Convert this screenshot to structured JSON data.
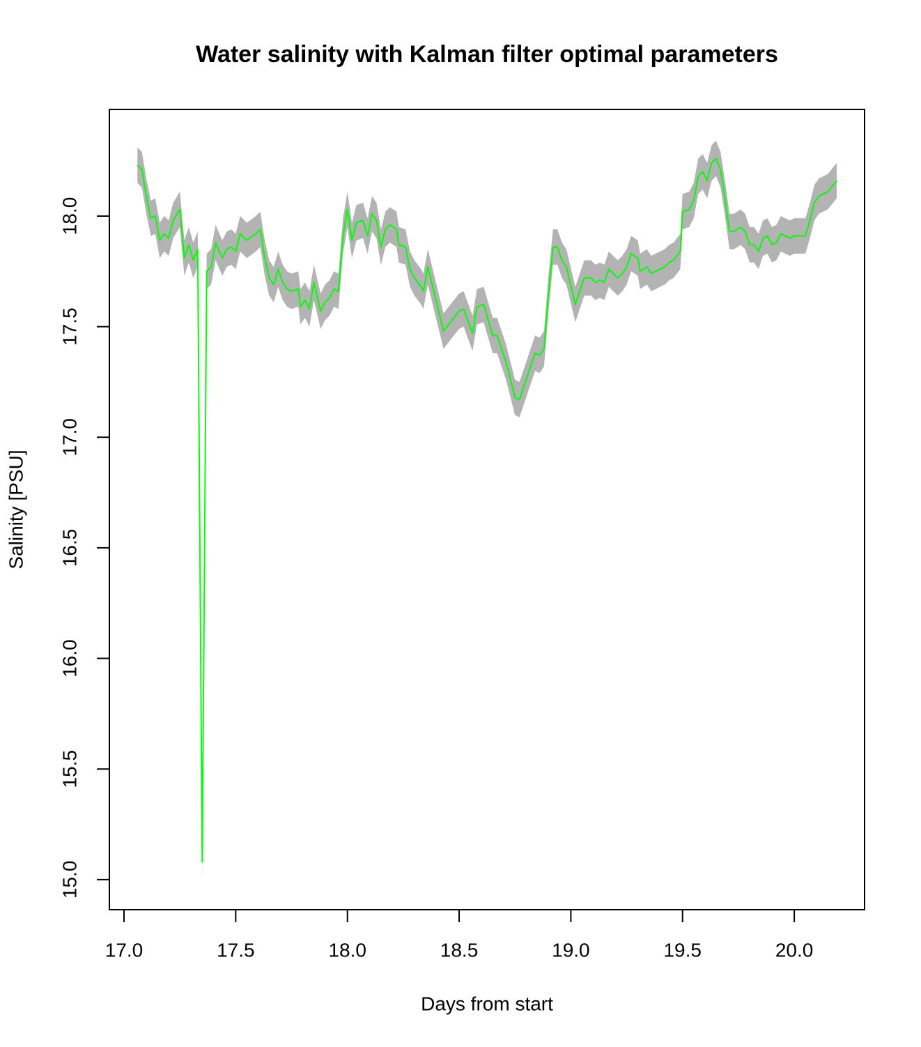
{
  "chart_data": {
    "type": "line",
    "title": "Water salinity with Kalman filter optimal parameters",
    "x_label": "Days from start",
    "y_label": "Salinity [PSU]",
    "xlim": [
      16.9345,
      20.3147
    ],
    "ylim": [
      14.864,
      18.482
    ],
    "xticks": [
      {
        "value": 17,
        "label": "17.0"
      },
      {
        "value": 17.5,
        "label": "17.5"
      },
      {
        "value": 18,
        "label": "18.0"
      },
      {
        "value": 18.5,
        "label": "18.5"
      },
      {
        "value": 19,
        "label": "19.0"
      },
      {
        "value": 19.5,
        "label": "19.5"
      },
      {
        "value": 20,
        "label": "20.0"
      }
    ],
    "yticks": [
      {
        "value": 15,
        "label": "15.0"
      },
      {
        "value": 15.5,
        "label": "15.5"
      },
      {
        "value": 16,
        "label": "16.0"
      },
      {
        "value": 16.5,
        "label": "16.5"
      },
      {
        "value": 17,
        "label": "17.0"
      },
      {
        "value": 17.5,
        "label": "17.5"
      },
      {
        "value": 18,
        "label": "18.0"
      }
    ],
    "x": [
      17.06,
      17.08,
      17.1,
      17.12,
      17.14,
      17.16,
      17.18,
      17.2,
      17.22,
      17.25,
      17.27,
      17.29,
      17.31,
      17.33,
      17.35,
      17.37,
      17.39,
      17.41,
      17.44,
      17.46,
      17.48,
      17.5,
      17.52,
      17.55,
      17.59,
      17.61,
      17.63,
      17.65,
      17.67,
      17.69,
      17.71,
      17.73,
      17.75,
      17.78,
      17.79,
      17.81,
      17.83,
      17.85,
      17.88,
      17.9,
      17.92,
      17.94,
      17.96,
      17.98,
      18.0,
      18.02,
      18.04,
      18.07,
      18.09,
      18.11,
      18.13,
      18.15,
      18.17,
      18.19,
      18.22,
      18.23,
      18.26,
      18.28,
      18.3,
      18.33,
      18.34,
      18.36,
      18.43,
      18.5,
      18.52,
      18.56,
      18.58,
      18.61,
      18.65,
      18.67,
      18.69,
      18.71,
      18.75,
      18.77,
      18.81,
      18.84,
      18.86,
      18.88,
      18.9,
      18.92,
      18.94,
      18.96,
      18.98,
      19.02,
      19.06,
      19.09,
      19.11,
      19.13,
      19.15,
      19.17,
      19.21,
      19.23,
      19.25,
      19.27,
      19.3,
      19.31,
      19.34,
      19.36,
      19.42,
      19.44,
      19.46,
      19.49,
      19.5,
      19.53,
      19.55,
      19.57,
      19.59,
      19.61,
      19.63,
      19.65,
      19.67,
      19.69,
      19.71,
      19.73,
      19.76,
      19.78,
      19.8,
      19.82,
      19.84,
      19.86,
      19.88,
      19.9,
      19.92,
      19.94,
      19.98,
      20.0,
      20.05,
      20.07,
      20.09,
      20.11,
      20.15,
      20.19
    ],
    "band": {
      "color": "#b3b3b3",
      "upper": [
        18.31,
        18.29,
        18.17,
        18.07,
        18.08,
        17.97,
        18.0,
        17.98,
        18.06,
        18.11,
        17.89,
        17.95,
        17.88,
        17.93,
        15.12,
        17.83,
        17.85,
        17.96,
        17.89,
        17.93,
        17.94,
        17.92,
        18.0,
        17.97,
        18.0,
        18.02,
        17.89,
        17.8,
        17.77,
        17.84,
        17.78,
        17.75,
        17.74,
        17.75,
        17.67,
        17.7,
        17.66,
        17.78,
        17.65,
        17.69,
        17.71,
        17.75,
        17.74,
        17.99,
        18.11,
        17.97,
        18.05,
        18.06,
        17.99,
        18.09,
        18.06,
        17.94,
        18.02,
        18.04,
        18.02,
        17.95,
        17.94,
        17.84,
        17.8,
        17.76,
        17.74,
        17.85,
        17.56,
        17.65,
        17.66,
        17.55,
        17.67,
        17.68,
        17.54,
        17.54,
        17.48,
        17.42,
        17.26,
        17.25,
        17.37,
        17.46,
        17.45,
        17.48,
        17.73,
        17.94,
        17.94,
        17.88,
        17.85,
        17.68,
        17.8,
        17.8,
        17.78,
        17.79,
        17.78,
        17.84,
        17.8,
        17.82,
        17.85,
        17.91,
        17.89,
        17.83,
        17.85,
        17.82,
        17.85,
        17.87,
        17.88,
        17.92,
        18.1,
        18.11,
        18.15,
        18.26,
        18.28,
        18.24,
        18.32,
        18.34,
        18.29,
        18.16,
        18.01,
        18.01,
        18.03,
        18.01,
        17.95,
        17.95,
        17.92,
        17.98,
        17.99,
        17.95,
        17.96,
        18.0,
        17.98,
        17.99,
        17.99,
        18.06,
        18.14,
        18.17,
        18.19,
        18.24
      ],
      "lower": [
        18.15,
        18.13,
        18.01,
        17.91,
        17.92,
        17.81,
        17.84,
        17.82,
        17.9,
        17.95,
        17.73,
        17.79,
        17.72,
        17.77,
        15.02,
        17.67,
        17.69,
        17.8,
        17.73,
        17.77,
        17.78,
        17.76,
        17.84,
        17.81,
        17.84,
        17.86,
        17.73,
        17.64,
        17.61,
        17.68,
        17.62,
        17.59,
        17.58,
        17.59,
        17.51,
        17.54,
        17.5,
        17.62,
        17.49,
        17.53,
        17.55,
        17.59,
        17.58,
        17.83,
        17.95,
        17.81,
        17.89,
        17.9,
        17.83,
        17.93,
        17.9,
        17.78,
        17.86,
        17.88,
        17.86,
        17.79,
        17.78,
        17.68,
        17.64,
        17.6,
        17.58,
        17.69,
        17.4,
        17.49,
        17.5,
        17.39,
        17.51,
        17.52,
        17.38,
        17.38,
        17.32,
        17.26,
        17.1,
        17.09,
        17.21,
        17.3,
        17.29,
        17.32,
        17.57,
        17.78,
        17.78,
        17.72,
        17.69,
        17.52,
        17.64,
        17.64,
        17.62,
        17.63,
        17.62,
        17.68,
        17.64,
        17.66,
        17.69,
        17.75,
        17.73,
        17.67,
        17.69,
        17.66,
        17.69,
        17.71,
        17.72,
        17.76,
        17.94,
        17.95,
        17.99,
        18.1,
        18.12,
        18.08,
        18.16,
        18.18,
        18.13,
        18.0,
        17.85,
        17.85,
        17.87,
        17.85,
        17.79,
        17.79,
        17.76,
        17.82,
        17.83,
        17.79,
        17.8,
        17.84,
        17.82,
        17.83,
        17.83,
        17.9,
        17.98,
        18.01,
        18.03,
        18.08
      ]
    },
    "values_color": "#00ff00",
    "values": [
      18.23,
      18.21,
      18.09,
      17.99,
      18.0,
      17.89,
      17.92,
      17.9,
      17.98,
      18.03,
      17.81,
      17.87,
      17.8,
      17.85,
      15.08,
      17.75,
      17.77,
      17.88,
      17.81,
      17.85,
      17.86,
      17.84,
      17.92,
      17.89,
      17.92,
      17.94,
      17.81,
      17.72,
      17.69,
      17.76,
      17.7,
      17.67,
      17.66,
      17.67,
      17.59,
      17.62,
      17.58,
      17.7,
      17.57,
      17.61,
      17.63,
      17.67,
      17.66,
      17.91,
      18.03,
      17.89,
      17.97,
      17.98,
      17.91,
      18.01,
      17.98,
      17.86,
      17.94,
      17.96,
      17.94,
      17.87,
      17.86,
      17.76,
      17.72,
      17.68,
      17.66,
      17.77,
      17.48,
      17.57,
      17.58,
      17.47,
      17.59,
      17.6,
      17.46,
      17.46,
      17.4,
      17.34,
      17.18,
      17.17,
      17.29,
      17.38,
      17.37,
      17.4,
      17.65,
      17.86,
      17.86,
      17.8,
      17.77,
      17.6,
      17.72,
      17.72,
      17.7,
      17.71,
      17.7,
      17.76,
      17.72,
      17.74,
      17.77,
      17.83,
      17.81,
      17.75,
      17.77,
      17.74,
      17.77,
      17.79,
      17.8,
      17.84,
      18.02,
      18.03,
      18.07,
      18.18,
      18.2,
      18.16,
      18.24,
      18.26,
      18.21,
      18.08,
      17.93,
      17.93,
      17.95,
      17.93,
      17.87,
      17.87,
      17.84,
      17.9,
      17.91,
      17.87,
      17.88,
      17.92,
      17.9,
      17.91,
      17.91,
      17.98,
      18.06,
      18.09,
      18.11,
      18.16
    ]
  }
}
